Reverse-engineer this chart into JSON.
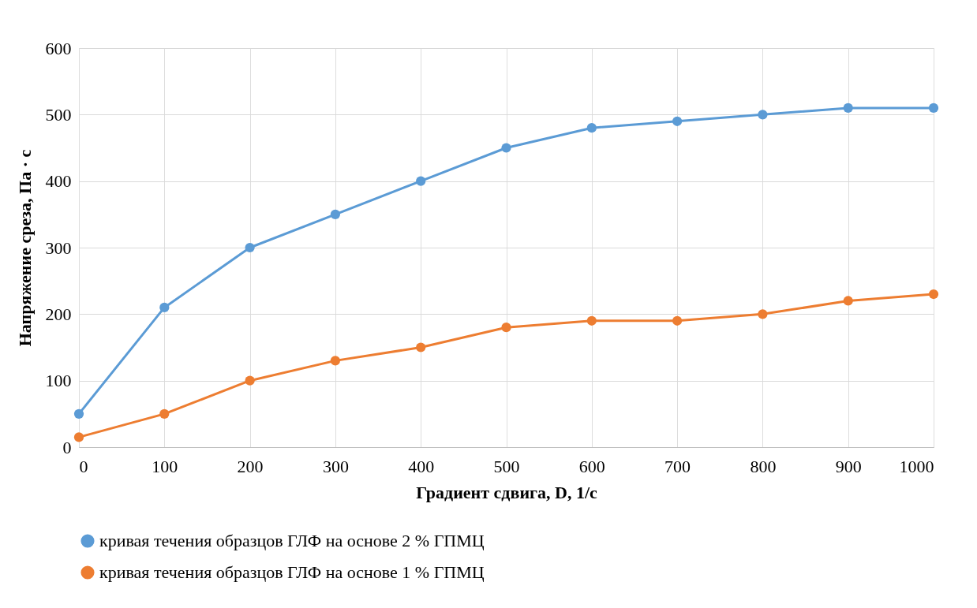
{
  "chart_data": {
    "type": "line",
    "xlabel": "Градиент сдвига, D, 1/с",
    "ylabel": "Напряжение среза, Па · с",
    "x": [
      0,
      100,
      200,
      300,
      400,
      500,
      600,
      700,
      800,
      900,
      1000
    ],
    "series": [
      {
        "name": "кривая течения образцов ГЛФ на основе 2 % ГПМЦ",
        "color": "#5b9bd5",
        "values": [
          50,
          210,
          300,
          350,
          400,
          450,
          480,
          490,
          500,
          510,
          510
        ]
      },
      {
        "name": "кривая течения образцов ГЛФ на основе 1 % ГПМЦ",
        "color": "#ed7d31",
        "values": [
          15,
          50,
          100,
          130,
          150,
          180,
          190,
          190,
          200,
          220,
          230
        ]
      }
    ],
    "xlim": [
      0,
      1000
    ],
    "xticks": [
      0,
      100,
      200,
      300,
      400,
      500,
      600,
      700,
      800,
      900,
      1000
    ],
    "ylim": [
      0,
      600
    ],
    "yticks": [
      0,
      100,
      200,
      300,
      400,
      500,
      600
    ],
    "grid": true,
    "legend": "bottom",
    "marker": "circle",
    "line_style": "solid"
  }
}
